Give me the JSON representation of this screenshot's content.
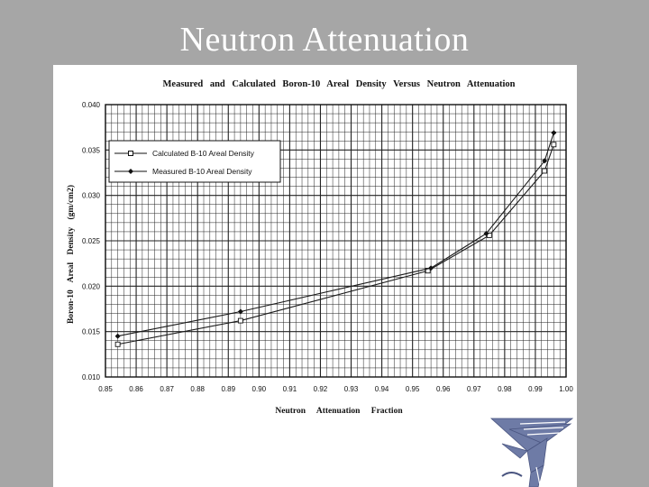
{
  "slide": {
    "title": "Neutron Attenuation"
  },
  "colors": {
    "background": "#a6a6a6",
    "panel": "#ffffff",
    "line": "#1a1a1a",
    "logo": "#6e7ba6"
  },
  "logo": {
    "icon": "eagle-logo-icon"
  },
  "chart_data": {
    "type": "line",
    "title": "Measured and Calculated Boron-10 Areal Density Versus Neutron Attenuation",
    "xlabel": "Neutron Attenuation Fraction",
    "ylabel": "Boron-10 Areal Density (gm/cm2)",
    "xlim": [
      0.85,
      1.0
    ],
    "ylim": [
      0.01,
      0.04
    ],
    "xticks": [
      "0.85",
      "0.86",
      "0.87",
      "0.88",
      "0.89",
      "0.90",
      "0.91",
      "0.92",
      "0.93",
      "0.94",
      "0.95",
      "0.96",
      "0.97",
      "0.98",
      "0.99",
      "1.00"
    ],
    "xtick_values": [
      0.85,
      0.86,
      0.87,
      0.88,
      0.89,
      0.9,
      0.91,
      0.92,
      0.93,
      0.94,
      0.95,
      0.96,
      0.97,
      0.98,
      0.99,
      1.0
    ],
    "yticks": [
      "0.010",
      "0.015",
      "0.020",
      "0.025",
      "0.030",
      "0.035",
      "0.040"
    ],
    "ytick_values": [
      0.01,
      0.015,
      0.02,
      0.025,
      0.03,
      0.035,
      0.04
    ],
    "grid": true,
    "legend_position": "top-left",
    "series": [
      {
        "name": "Calculated B-10 Areal Density",
        "marker": "open-square",
        "x": [
          0.854,
          0.894,
          0.955,
          0.975,
          0.993,
          0.996
        ],
        "y": [
          0.0136,
          0.0162,
          0.0217,
          0.0256,
          0.0327,
          0.0356
        ]
      },
      {
        "name": "Measured B-10 Areal Density",
        "marker": "filled-diamond",
        "x": [
          0.854,
          0.894,
          0.956,
          0.974,
          0.993,
          0.996
        ],
        "y": [
          0.0145,
          0.0172,
          0.022,
          0.0258,
          0.0338,
          0.0369
        ]
      }
    ]
  }
}
